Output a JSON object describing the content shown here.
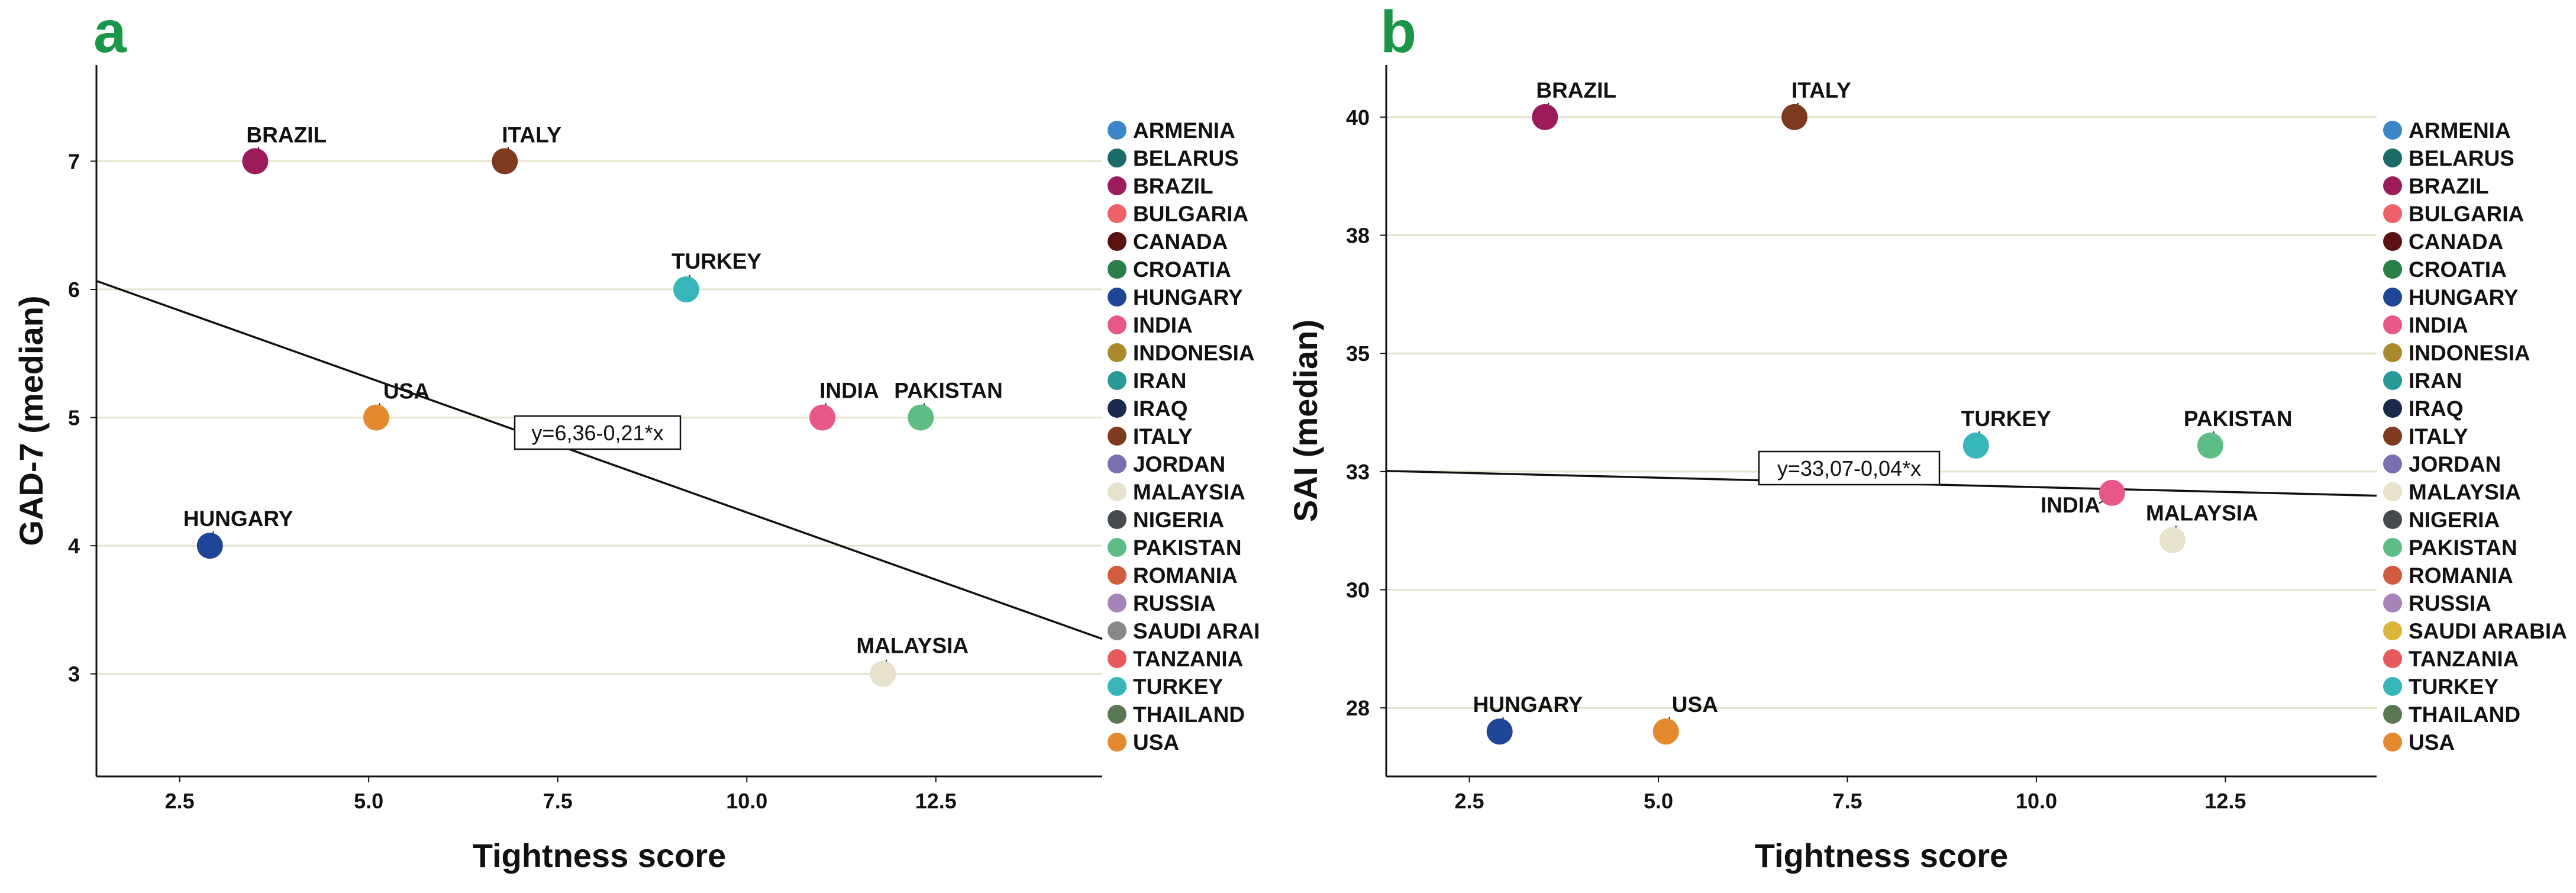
{
  "colors": {
    "ARMENIA": "#3a86c8",
    "BELARUS": "#1b6b66",
    "BRAZIL": "#9b1b5b",
    "BULGARIA": "#ef6168",
    "CANADA": "#5a1212",
    "CROATIA": "#2a7f48",
    "HUNGARY": "#1f4696",
    "INDIA": "#e8578a",
    "INDONESIA": "#a88a2c",
    "IRAN": "#2a9a98",
    "IRAQ": "#192a4c",
    "ITALY": "#7d3a1f",
    "JORDAN": "#7a6fb0",
    "MALAYSIA": "#e6e2cc",
    "NIGERIA": "#454a4e",
    "PAKISTAN": "#5ebd84",
    "ROMANIA": "#d05b3e",
    "RUSSIA": "#a683b8",
    "SAUDI ARABIA": "#dcb63a",
    "TANZANIA": "#e75a5c",
    "TURKEY": "#36b6b8",
    "THAILAND": "#5a7652",
    "USA": "#e48a2e"
  },
  "accent_color": "#1a9648",
  "grid_color": "#e4e2c8",
  "chart_data": [
    {
      "type": "scatter",
      "panel": "a",
      "xlabel": "Tightness score",
      "ylabel": "GAD-7 (median)",
      "xlim": [
        1.4,
        14.7
      ],
      "ylim": [
        2.2,
        7.75
      ],
      "xticks": [
        "2.5",
        "5.0",
        "7.5",
        "10.0",
        "12.5"
      ],
      "yticks": [
        "3",
        "4",
        "5",
        "6",
        "7"
      ],
      "points": [
        {
          "name": "BRAZIL",
          "x": 3.5,
          "y": 7
        },
        {
          "name": "ITALY",
          "x": 6.8,
          "y": 7
        },
        {
          "name": "TURKEY",
          "x": 9.2,
          "y": 6
        },
        {
          "name": "USA",
          "x": 5.1,
          "y": 5
        },
        {
          "name": "INDIA",
          "x": 11.0,
          "y": 5
        },
        {
          "name": "PAKISTAN",
          "x": 12.3,
          "y": 5
        },
        {
          "name": "HUNGARY",
          "x": 2.9,
          "y": 4
        },
        {
          "name": "MALAYSIA",
          "x": 11.8,
          "y": 3
        }
      ],
      "regression": {
        "intercept": 6.36,
        "slope": -0.21,
        "label": "y=6,36-0,21*x"
      },
      "legend": [
        "ARMENIA",
        "BELARUS",
        "BRAZIL",
        "BULGARIA",
        "CANADA",
        "CROATIA",
        "HUNGARY",
        "INDIA",
        "INDONESIA",
        "IRAN",
        "IRAQ",
        "ITALY",
        "JORDAN",
        "MALAYSIA",
        "NIGERIA",
        "PAKISTAN",
        "ROMANIA",
        "RUSSIA",
        "SAUDI ARAI",
        "TANZANIA",
        "TURKEY",
        "THAILAND",
        "USA"
      ]
    },
    {
      "type": "scatter",
      "panel": "b",
      "xlabel": "Tightness score",
      "ylabel": "SAI (median)",
      "xlim": [
        1.4,
        14.5
      ],
      "ylim": [
        26.55,
        41.6
      ],
      "xticks": [
        "2.5",
        "5.0",
        "7.5",
        "10.0",
        "12.5"
      ],
      "yticks": [
        "28",
        "30",
        "33",
        "35",
        "38",
        "40"
      ],
      "ytick_values": [
        28,
        30.5,
        33,
        35.5,
        38,
        40.5
      ],
      "points": [
        {
          "name": "BRAZIL",
          "x": 3.5,
          "y": 40.5
        },
        {
          "name": "ITALY",
          "x": 6.8,
          "y": 40.5
        },
        {
          "name": "TURKEY",
          "x": 9.2,
          "y": 33.55
        },
        {
          "name": "PAKISTAN",
          "x": 12.3,
          "y": 33.55
        },
        {
          "name": "INDIA",
          "x": 11.0,
          "y": 32.55
        },
        {
          "name": "MALAYSIA",
          "x": 11.8,
          "y": 31.55
        },
        {
          "name": "HUNGARY",
          "x": 2.9,
          "y": 27.5
        },
        {
          "name": "USA",
          "x": 5.1,
          "y": 27.5
        }
      ],
      "regression": {
        "intercept": 33.07,
        "slope": -0.04,
        "label": "y=33,07-0,04*x"
      },
      "legend": [
        "ARMENIA",
        "BELARUS",
        "BRAZIL",
        "BULGARIA",
        "CANADA",
        "CROATIA",
        "HUNGARY",
        "INDIA",
        "INDONESIA",
        "IRAN",
        "IRAQ",
        "ITALY",
        "JORDAN",
        "MALAYSIA",
        "NIGERIA",
        "PAKISTAN",
        "ROMANIA",
        "RUSSIA",
        "SAUDI ARABIA",
        "TANZANIA",
        "TURKEY",
        "THAILAND",
        "USA"
      ]
    }
  ]
}
